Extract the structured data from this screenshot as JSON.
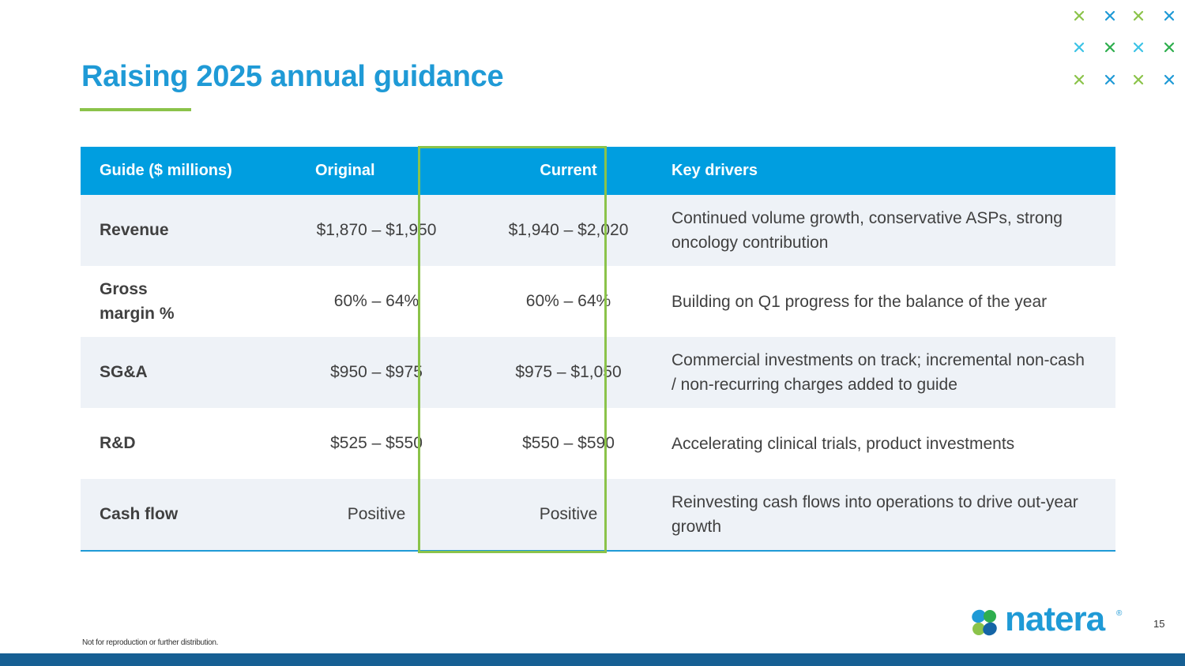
{
  "title": "Raising 2025 annual guidance",
  "table": {
    "headers": [
      "Guide ($ millions)",
      "Original",
      "Current",
      "Key drivers"
    ],
    "rows": [
      {
        "label": "Revenue",
        "original": "$1,870 – $1,950",
        "current": "$1,940 – $2,020",
        "drivers": "Continued volume growth, conservative ASPs, strong oncology contribution"
      },
      {
        "label": "Gross margin %",
        "original": "60% – 64%",
        "current": "60% – 64%",
        "drivers": "Building on Q1 progress for the balance of the year"
      },
      {
        "label": "SG&A",
        "original": "$950 – $975",
        "current": "$975 – $1,050",
        "drivers": "Commercial investments on track; incremental non-cash / non-recurring charges added to guide"
      },
      {
        "label": "R&D",
        "original": "$525 – $550",
        "current": "$550 – $590",
        "drivers": "Accelerating clinical trials, product investments"
      },
      {
        "label": "Cash flow",
        "original": "Positive",
        "current": "Positive",
        "drivers": "Reinvesting cash flows into operations to drive out-year growth"
      }
    ]
  },
  "footnote": "Not for reproduction or further distribution.",
  "page_number": "15",
  "logo": {
    "text": "natera",
    "mark": "®"
  },
  "colors": {
    "title_blue": "#1f9ad6",
    "header_blue": "#009ee0",
    "accent_green": "#8bc34a",
    "row_band": "#eef2f7",
    "bottom_bar": "#165f93"
  },
  "decor_icons": [
    [
      "green",
      "blue",
      "green",
      "blue"
    ],
    [
      "cyan",
      "green",
      "cyan",
      "green"
    ],
    [
      "green",
      "blue",
      "green",
      "blue"
    ]
  ]
}
